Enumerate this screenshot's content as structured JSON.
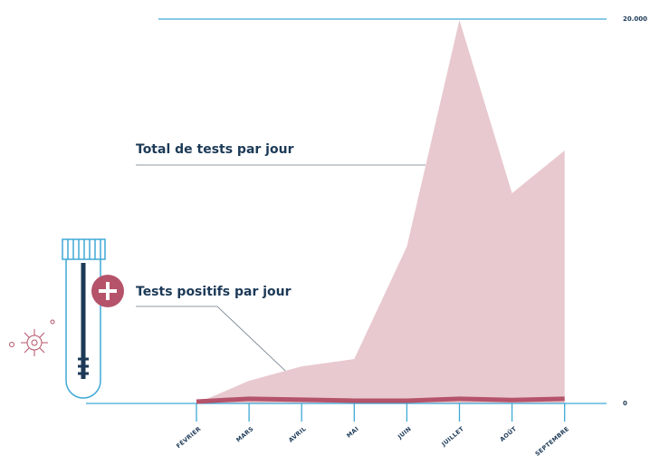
{
  "chart_data": {
    "type": "area",
    "categories": [
      "FÉVRIER",
      "MARS",
      "AVRIL",
      "MAI",
      "JUIN",
      "JUILLET",
      "AOÛT",
      "SEPTEMBRE"
    ],
    "series": [
      {
        "name": "Total de tests par jour",
        "type": "area",
        "color": "#e8c9cf",
        "values": [
          0,
          1180,
          1930,
          2310,
          8160,
          19950,
          10940,
          13160
        ]
      },
      {
        "name": "Tests positifs par jour",
        "type": "line",
        "color": "#b5536a",
        "values": [
          0,
          150,
          100,
          50,
          50,
          150,
          80,
          150
        ]
      }
    ],
    "ylim": [
      0,
      20000
    ],
    "yticks": [
      0,
      {
        "value": 20000,
        "label": "20.000"
      }
    ],
    "axis_color": "#3fa9d6"
  }
}
